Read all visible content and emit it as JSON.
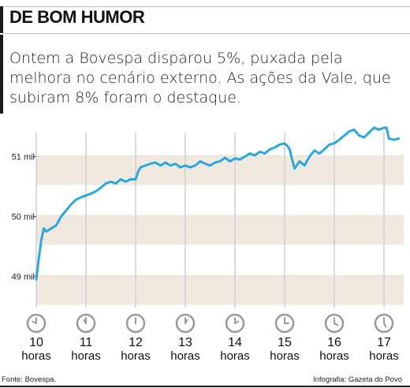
{
  "header": {
    "title": "DE BOM HUMOR"
  },
  "description": "Ontem a Bovespa disparou 5%, puxada pela melhora no cenário externo. As ações da Vale, que subiram 8% foram o destaque.",
  "footer": {
    "source": "Fonte: Bovespa.",
    "credit": "Infografia: Gazeta do Povo"
  },
  "colors": {
    "line": "#2aa7dd",
    "band": "#efe9df",
    "grid": "#cfcfcf",
    "clock": "#9a9a9a"
  },
  "chart_data": {
    "type": "line",
    "y_ticks": [
      {
        "value": 49,
        "label": "49 mil"
      },
      {
        "value": 50,
        "label": "50 mil"
      },
      {
        "value": 51,
        "label": "51 mil"
      }
    ],
    "ylim": [
      48.5,
      51.5
    ],
    "x_ticks": [
      {
        "value": 10,
        "hour": "10",
        "unit": "horas",
        "icon": "clock-icon"
      },
      {
        "value": 11,
        "hour": "11",
        "unit": "horas",
        "icon": "clock-icon"
      },
      {
        "value": 12,
        "hour": "12",
        "unit": "horas",
        "icon": "clock-icon"
      },
      {
        "value": 13,
        "hour": "13",
        "unit": "horas",
        "icon": "clock-icon"
      },
      {
        "value": 14,
        "hour": "14",
        "unit": "horas",
        "icon": "clock-icon"
      },
      {
        "value": 15,
        "hour": "15",
        "unit": "horas",
        "icon": "clock-icon"
      },
      {
        "value": 16,
        "hour": "16",
        "unit": "horas",
        "icon": "clock-icon"
      },
      {
        "value": 17,
        "hour": "17",
        "unit": "horas",
        "icon": "clock-icon"
      }
    ],
    "xlim": [
      10,
      17.5
    ],
    "grid": true,
    "series": [
      {
        "x": [
          10.0,
          10.05,
          10.1,
          10.15,
          10.2,
          10.3,
          10.4,
          10.5,
          10.6,
          10.7,
          10.8,
          10.9,
          11.0,
          11.1,
          11.2,
          11.3,
          11.4,
          11.5,
          11.6,
          11.7,
          11.8,
          11.9,
          12.0,
          12.05,
          12.1,
          12.2,
          12.3,
          12.4,
          12.5,
          12.6,
          12.7,
          12.8,
          12.9,
          13.0,
          13.1,
          13.2,
          13.3,
          13.4,
          13.5,
          13.6,
          13.7,
          13.8,
          13.9,
          14.0,
          14.1,
          14.2,
          14.3,
          14.4,
          14.5,
          14.6,
          14.7,
          14.8,
          14.9,
          15.0,
          15.05,
          15.1,
          15.15,
          15.2,
          15.3,
          15.4,
          15.5,
          15.6,
          15.7,
          15.8,
          15.9,
          16.0,
          16.1,
          16.2,
          16.3,
          16.4,
          16.5,
          16.6,
          16.7,
          16.8,
          16.9,
          17.0,
          17.05,
          17.1,
          17.2,
          17.3
        ],
        "y": [
          48.95,
          49.3,
          49.6,
          49.8,
          49.75,
          49.8,
          49.85,
          50.0,
          50.1,
          50.2,
          50.28,
          50.32,
          50.35,
          50.38,
          50.42,
          50.48,
          50.55,
          50.58,
          50.55,
          50.62,
          50.58,
          50.62,
          50.62,
          50.75,
          50.82,
          50.85,
          50.88,
          50.9,
          50.85,
          50.9,
          50.85,
          50.88,
          50.82,
          50.85,
          50.82,
          50.85,
          50.92,
          50.88,
          50.85,
          50.9,
          50.92,
          50.98,
          50.92,
          50.97,
          50.95,
          51.0,
          51.05,
          51.02,
          51.08,
          51.05,
          51.12,
          51.15,
          51.2,
          51.22,
          51.18,
          51.12,
          50.95,
          50.8,
          50.92,
          50.85,
          51.0,
          51.1,
          51.05,
          51.12,
          51.2,
          51.22,
          51.28,
          51.35,
          51.42,
          51.45,
          51.35,
          51.32,
          51.4,
          51.48,
          51.45,
          51.48,
          51.48,
          51.3,
          51.28,
          51.3
        ]
      }
    ]
  }
}
